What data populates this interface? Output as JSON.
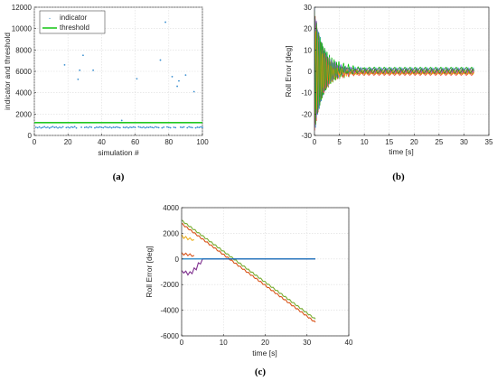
{
  "panels": [
    {
      "id": "a",
      "caption": "(a)",
      "chart_data": {
        "type": "scatter",
        "xlabel": "simulation #",
        "ylabel": "indicator and threshold",
        "xlim": [
          0,
          100
        ],
        "ylim": [
          0,
          12000
        ],
        "xticks": [
          0,
          20,
          40,
          60,
          80,
          100
        ],
        "yticks": [
          0,
          2000,
          4000,
          6000,
          8000,
          10000,
          12000
        ],
        "grid": true,
        "legend_position": "top-left",
        "series": [
          {
            "name": "indicator",
            "kind": "points",
            "color": "#3a8fd0",
            "x": [
              1,
              2,
              3,
              4,
              5,
              6,
              7,
              8,
              9,
              10,
              11,
              12,
              13,
              14,
              15,
              16,
              17,
              18,
              19,
              20,
              21,
              22,
              23,
              24,
              25,
              26,
              27,
              28,
              29,
              30,
              31,
              32,
              33,
              34,
              35,
              36,
              37,
              38,
              39,
              40,
              41,
              42,
              43,
              44,
              45,
              46,
              47,
              48,
              49,
              50,
              51,
              52,
              53,
              54,
              55,
              56,
              57,
              58,
              59,
              60,
              61,
              62,
              63,
              64,
              65,
              66,
              67,
              68,
              69,
              70,
              71,
              72,
              73,
              74,
              75,
              76,
              77,
              78,
              79,
              80,
              81,
              82,
              83,
              84,
              85,
              86,
              87,
              88,
              89,
              90,
              91,
              92,
              93,
              94,
              95,
              96,
              97,
              98,
              99,
              100
            ],
            "y": [
              760,
              720,
              790,
              700,
              750,
              810,
              730,
              770,
              690,
              760,
              820,
              740,
              780,
              700,
              760,
              720,
              800,
              6600,
              730,
              770,
              710,
              790,
              750,
              820,
              700,
              5250,
              6100,
              760,
              7500,
              740,
              780,
              720,
              800,
              760,
              6100,
              710,
              770,
              740,
              790,
              750,
              720,
              800,
              760,
              730,
              780,
              710,
              770,
              740,
              790,
              750,
              720,
              1400,
              760,
              730,
              780,
              710,
              770,
              740,
              790,
              750,
              5300,
              800,
              760,
              730,
              780,
              710,
              770,
              740,
              790,
              750,
              720,
              800,
              760,
              730,
              7050,
              710,
              770,
              10600,
              790,
              750,
              720,
              5500,
              760,
              730,
              4600,
              5100,
              770,
              740,
              790,
              5650,
              720,
              800,
              760,
              730,
              4100,
              710,
              770,
              740,
              790,
              750
            ]
          },
          {
            "name": "threshold",
            "kind": "line",
            "color": "#22c822",
            "x": [
              0,
              100
            ],
            "y": [
              1200,
              1200
            ]
          }
        ]
      }
    },
    {
      "id": "b",
      "caption": "(b)",
      "chart_data": {
        "type": "line",
        "xlabel": "time [s]",
        "ylabel": "Roll Error [deg]",
        "xlim": [
          0,
          35
        ],
        "ylim": [
          -30,
          30
        ],
        "xticks": [
          0,
          5,
          10,
          15,
          20,
          25,
          30,
          35
        ],
        "yticks": [
          -30,
          -20,
          -10,
          0,
          10,
          20,
          30
        ],
        "grid": true,
        "description_series": "many overlaid damped oscillating roll-error traces converging to about 0 after roughly 5 s, ending at 32 s",
        "series": [
          {
            "amp": 30,
            "decay": 0.55,
            "freq": 2.6,
            "phase": 0.0,
            "offset": 0.0,
            "color": "#0072bd"
          },
          {
            "amp": -28,
            "decay": 0.6,
            "freq": 2.9,
            "phase": 0.4,
            "offset": 0.3,
            "color": "#d95319"
          },
          {
            "amp": 26,
            "decay": 0.5,
            "freq": 2.4,
            "phase": 1.0,
            "offset": -0.4,
            "color": "#edb120"
          },
          {
            "amp": -30,
            "decay": 0.65,
            "freq": 3.1,
            "phase": 1.6,
            "offset": 0.6,
            "color": "#7e2f8e"
          },
          {
            "amp": 24,
            "decay": 0.45,
            "freq": 2.2,
            "phase": 2.1,
            "offset": -0.7,
            "color": "#77ac30"
          },
          {
            "amp": -22,
            "decay": 0.5,
            "freq": 2.7,
            "phase": 2.7,
            "offset": 0.8,
            "color": "#4dbeee"
          },
          {
            "amp": 27,
            "decay": 0.7,
            "freq": 3.3,
            "phase": 0.8,
            "offset": -0.2,
            "color": "#a2142f"
          },
          {
            "amp": -25,
            "decay": 0.42,
            "freq": 2.1,
            "phase": 1.3,
            "offset": 1.0,
            "color": "#00c000"
          },
          {
            "amp": 29,
            "decay": 0.58,
            "freq": 2.8,
            "phase": 2.4,
            "offset": -1.0,
            "color": "#ff4040"
          },
          {
            "amp": -27,
            "decay": 0.48,
            "freq": 2.5,
            "phase": 0.2,
            "offset": 0.4,
            "color": "#9966cc"
          },
          {
            "amp": 23,
            "decay": 0.62,
            "freq": 3.0,
            "phase": 1.9,
            "offset": -0.5,
            "color": "#ff9900"
          },
          {
            "amp": -29,
            "decay": 0.53,
            "freq": 2.3,
            "phase": 2.9,
            "offset": 0.2,
            "color": "#2ca02c"
          }
        ],
        "t_end": 32
      }
    },
    {
      "id": "c",
      "caption": "(c)",
      "chart_data": {
        "type": "line",
        "xlabel": "time [s]",
        "ylabel": "Roll Error [deg]",
        "xlim": [
          0,
          40
        ],
        "ylim": [
          -6000,
          4000
        ],
        "xticks": [
          0,
          10,
          20,
          30,
          40
        ],
        "yticks": [
          -6000,
          -4000,
          -2000,
          0,
          2000,
          4000
        ],
        "grid": true,
        "series": [
          {
            "color": "#77ac30",
            "x": [
              0,
              32
            ],
            "y": [
              3000,
              -4700
            ],
            "ripple": 60
          },
          {
            "color": "#d95319",
            "x": [
              0,
              32
            ],
            "y": [
              2750,
              -4950
            ],
            "ripple": 60
          },
          {
            "color": "#edb120",
            "x": [
              0,
              0.5,
              1,
              1.5,
              2,
              2.5,
              3
            ],
            "y": [
              1900,
              1600,
              1750,
              1500,
              1650,
              1450,
              1500
            ]
          },
          {
            "color": "#d95319",
            "x": [
              0,
              0.5,
              1,
              1.5,
              2,
              2.5,
              3
            ],
            "y": [
              500,
              300,
              450,
              250,
              400,
              200,
              280
            ]
          },
          {
            "color": "#7e2f8e",
            "x": [
              0,
              0.5,
              1,
              1.5,
              2,
              2.5,
              3,
              3.5,
              4,
              4.5,
              5,
              32
            ],
            "y": [
              -900,
              -1100,
              -950,
              -1250,
              -1000,
              -1150,
              -700,
              -850,
              -300,
              -400,
              0,
              0
            ]
          },
          {
            "color": "#0072bd",
            "x": [
              0,
              32
            ],
            "y": [
              0,
              0
            ]
          }
        ]
      }
    }
  ]
}
